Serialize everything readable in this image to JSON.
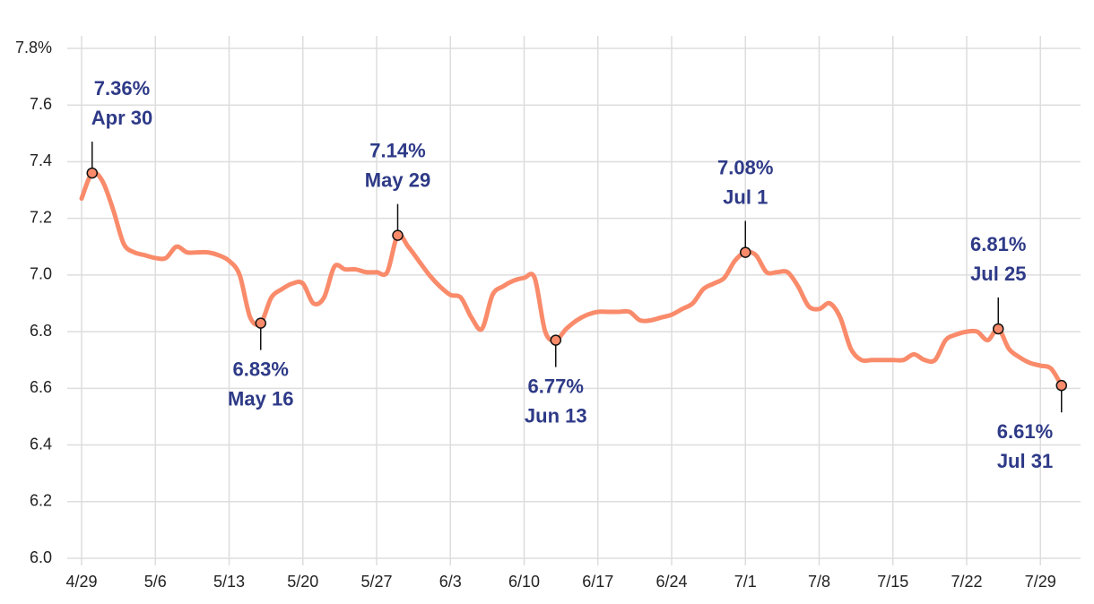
{
  "chart_data": {
    "type": "line",
    "x": [
      "4/29",
      "4/30",
      "5/1",
      "5/2",
      "5/3",
      "5/4",
      "5/5",
      "5/6",
      "5/7",
      "5/8",
      "5/9",
      "5/10",
      "5/11",
      "5/12",
      "5/13",
      "5/14",
      "5/15",
      "5/16",
      "5/17",
      "5/18",
      "5/19",
      "5/20",
      "5/21",
      "5/22",
      "5/23",
      "5/24",
      "5/25",
      "5/26",
      "5/27",
      "5/28",
      "5/29",
      "5/30",
      "5/31",
      "6/1",
      "6/2",
      "6/3",
      "6/4",
      "6/5",
      "6/6",
      "6/7",
      "6/8",
      "6/9",
      "6/10",
      "6/11",
      "6/12",
      "6/13",
      "6/14",
      "6/15",
      "6/16",
      "6/17",
      "6/18",
      "6/19",
      "6/20",
      "6/21",
      "6/22",
      "6/23",
      "6/24",
      "6/25",
      "6/26",
      "6/27",
      "6/28",
      "6/29",
      "6/30",
      "7/1",
      "7/2",
      "7/3",
      "7/4",
      "7/5",
      "7/6",
      "7/7",
      "7/8",
      "7/9",
      "7/10",
      "7/11",
      "7/12",
      "7/13",
      "7/14",
      "7/15",
      "7/16",
      "7/17",
      "7/18",
      "7/19",
      "7/20",
      "7/21",
      "7/22",
      "7/23",
      "7/24",
      "7/25",
      "7/26",
      "7/27",
      "7/28",
      "7/29",
      "7/30",
      "7/31"
    ],
    "values": [
      7.27,
      7.36,
      7.33,
      7.23,
      7.11,
      7.08,
      7.07,
      7.06,
      7.06,
      7.1,
      7.08,
      7.08,
      7.08,
      7.07,
      7.05,
      7.0,
      6.85,
      6.83,
      6.92,
      6.95,
      6.97,
      6.97,
      6.9,
      6.92,
      7.03,
      7.02,
      7.02,
      7.01,
      7.01,
      7.01,
      7.14,
      7.1,
      7.05,
      7.0,
      6.96,
      6.93,
      6.92,
      6.85,
      6.81,
      6.93,
      6.96,
      6.98,
      6.99,
      6.99,
      6.8,
      6.77,
      6.81,
      6.84,
      6.86,
      6.87,
      6.87,
      6.87,
      6.87,
      6.84,
      6.84,
      6.85,
      6.86,
      6.88,
      6.9,
      6.95,
      6.97,
      6.99,
      7.05,
      7.08,
      7.07,
      7.01,
      7.01,
      7.01,
      6.96,
      6.89,
      6.88,
      6.9,
      6.85,
      6.74,
      6.7,
      6.7,
      6.7,
      6.7,
      6.7,
      6.72,
      6.7,
      6.7,
      6.77,
      6.79,
      6.8,
      6.8,
      6.77,
      6.81,
      6.74,
      6.71,
      6.69,
      6.68,
      6.67,
      6.61
    ],
    "color": "#f98b6b",
    "xticks": [
      "4/29",
      "5/6",
      "5/13",
      "5/20",
      "5/27",
      "6/3",
      "6/10",
      "6/17",
      "6/24",
      "7/1",
      "7/8",
      "7/15",
      "7/22",
      "7/29"
    ],
    "ylim": [
      6.0,
      7.8
    ],
    "yticks": [
      {
        "value": 6.0,
        "label": "6.0"
      },
      6.2,
      6.4,
      6.6,
      6.8,
      {
        "value": 7.0,
        "label": "7.0"
      },
      7.2,
      7.4,
      7.6,
      {
        "value": 7.8,
        "label": "7.8%"
      }
    ],
    "grid": true,
    "annotations": [
      {
        "x": "4/30",
        "text": "7.36%",
        "date": "Apr 30",
        "position": "above"
      },
      {
        "x": "5/16",
        "text": "6.83%",
        "date": "May 16",
        "position": "below"
      },
      {
        "x": "5/29",
        "text": "7.14%",
        "date": "May 29",
        "position": "above"
      },
      {
        "x": "6/13",
        "text": "6.77%",
        "date": "Jun 13",
        "position": "below"
      },
      {
        "x": "7/1",
        "text": "7.08%",
        "date": "Jul 1",
        "position": "above"
      },
      {
        "x": "7/25",
        "text": "6.81%",
        "date": "Jul 25",
        "position": "above"
      },
      {
        "x": "7/31",
        "text": "6.61%",
        "date": "Jul 31",
        "position": "below"
      }
    ],
    "annotation_color": "#2e3a87"
  }
}
